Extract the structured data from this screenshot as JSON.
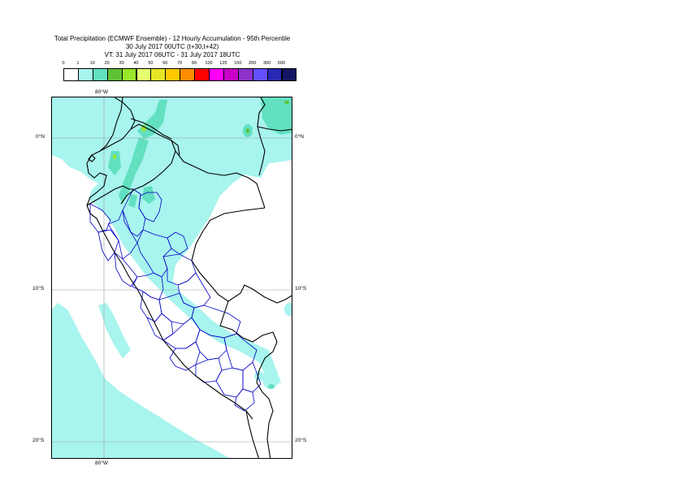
{
  "title": {
    "line1": "Total Precipitation (ECMWF Ensemble) - 12 Hourly Accumulation - 95th Percentile",
    "line2": "30 July 2017 00UTC (t+30,t+42)",
    "line3": "VT: 31 July 2017 06UTC - 31 July 2017 18UTC"
  },
  "legend": {
    "ticks": [
      "0",
      "1",
      "10",
      "20",
      "30",
      "40",
      "50",
      "60",
      "70",
      "80",
      "100",
      "125",
      "150",
      "200",
      "300",
      "500"
    ],
    "colors": [
      "#ffffff",
      "#a8f4ee",
      "#62e0c0",
      "#5fc235",
      "#9ae62a",
      "#e6ff6e",
      "#e6e628",
      "#ffc800",
      "#ff8c00",
      "#ff0000",
      "#ff00ff",
      "#c800c8",
      "#8c32c8",
      "#6450ff",
      "#2828b4",
      "#141464"
    ]
  },
  "map": {
    "lon_label_top": "80°W",
    "lon_label_bottom": "80°W",
    "lat_labels": [
      {
        "left": "0°N",
        "right": "0°N"
      },
      {
        "left": "10°S",
        "right": "10°S"
      },
      {
        "left": "20°S",
        "right": "20°S"
      }
    ],
    "precip_fill_color": "#a8f4ee",
    "precip_heavy_color": "#62e0c0",
    "country_border_color": "#000000",
    "region_border_color": "#0000c8",
    "graticule_color": "#999999"
  }
}
